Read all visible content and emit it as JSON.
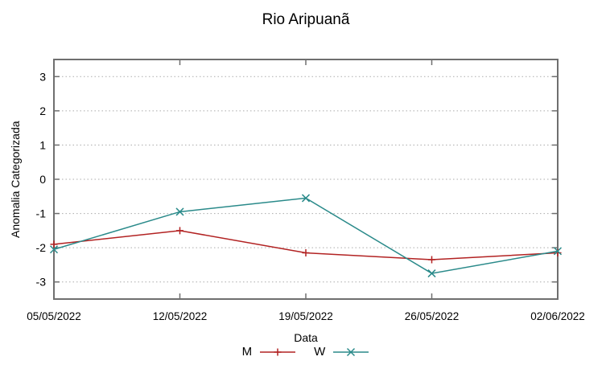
{
  "chart_data": {
    "type": "line",
    "title": "Rio Aripuanã",
    "xlabel": "Data",
    "ylabel": "Anomalia Categorizada",
    "x_tick_labels": [
      "05/05/2022",
      "12/05/2022",
      "19/05/2022",
      "26/05/2022",
      "02/06/2022"
    ],
    "y_ticks": [
      3,
      2,
      1,
      0,
      -1,
      -2,
      -3
    ],
    "ylim": [
      -3.5,
      3.5
    ],
    "grid": "horizontal-dotted",
    "legend_position": "bottom-center",
    "series": [
      {
        "name": "M",
        "color": "#b22222",
        "marker": "plus",
        "values": [
          -1.9,
          -1.5,
          -2.15,
          -2.35,
          -2.15
        ]
      },
      {
        "name": "W",
        "color": "#2a8a8a",
        "marker": "cross",
        "values": [
          -2.05,
          -0.95,
          -0.55,
          -2.75,
          -2.1
        ]
      }
    ],
    "axis_color": "#6f6f6f",
    "grid_color": "#ababab",
    "text_color": "#000000"
  }
}
